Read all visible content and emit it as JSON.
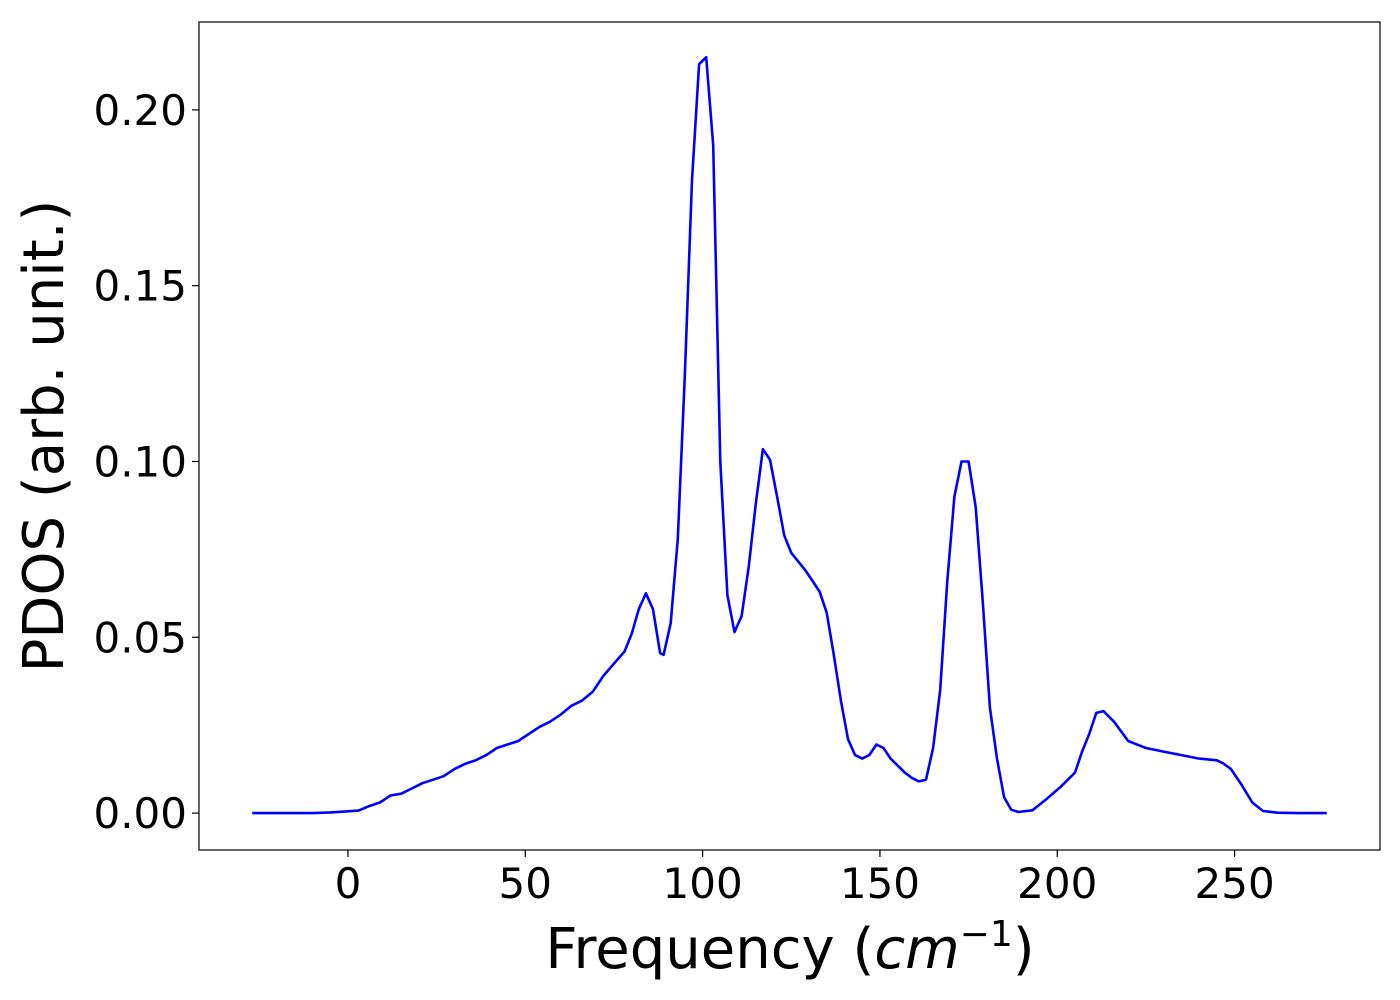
{
  "chart_data": {
    "type": "line",
    "title": "",
    "xlabel": "Frequency (cm⁻¹)",
    "xlabel_text": "Frequency (",
    "xlabel_unit": "cm",
    "xlabel_exp": "−1",
    "xlabel_close": ")",
    "ylabel": "PDOS (arb. unit.)",
    "xlim": [
      -42,
      291
    ],
    "ylim": [
      -0.0105,
      0.225
    ],
    "x_ticks": [
      0,
      50,
      100,
      150,
      200,
      250
    ],
    "x_tick_labels": [
      "0",
      "50",
      "100",
      "150",
      "200",
      "250"
    ],
    "y_ticks": [
      0.0,
      0.05,
      0.1,
      0.15,
      0.2
    ],
    "y_tick_labels": [
      "0.00",
      "0.05",
      "0.10",
      "0.15",
      "0.20"
    ],
    "grid": false,
    "legend": "none",
    "series": [
      {
        "color": "#0000ff",
        "x": [
          -27,
          -10,
          -5,
          0,
          3,
          6,
          9,
          12,
          15,
          18,
          21,
          24,
          27,
          30,
          33,
          36,
          39,
          42,
          45,
          48,
          51,
          54,
          57,
          60,
          63,
          66,
          69,
          72,
          75,
          78,
          80,
          82,
          84,
          86,
          88,
          89,
          91,
          93,
          95,
          97,
          99,
          101,
          103,
          105,
          107,
          109,
          111,
          113,
          115,
          117,
          119,
          121,
          123,
          125,
          127,
          129,
          131,
          133,
          135,
          137,
          139,
          141,
          143,
          145,
          147,
          149,
          151,
          153,
          155,
          157,
          159,
          161,
          163,
          165,
          167,
          169,
          171,
          173,
          175,
          177,
          179,
          181,
          183,
          185,
          187,
          189,
          193,
          197,
          201,
          205,
          207,
          209,
          211,
          213,
          216,
          220,
          225,
          230,
          235,
          240,
          245,
          247,
          249,
          252,
          255,
          258,
          262,
          268,
          276
        ],
        "y": [
          0.0,
          0.0,
          0.0002,
          0.0005,
          0.0007,
          0.002,
          0.003,
          0.005,
          0.0055,
          0.007,
          0.0085,
          0.0095,
          0.0105,
          0.0125,
          0.014,
          0.015,
          0.0165,
          0.0185,
          0.0195,
          0.0205,
          0.0225,
          0.0245,
          0.026,
          0.028,
          0.0305,
          0.032,
          0.0345,
          0.039,
          0.0425,
          0.046,
          0.051,
          0.058,
          0.0625,
          0.058,
          0.0455,
          0.045,
          0.054,
          0.078,
          0.125,
          0.18,
          0.213,
          0.215,
          0.19,
          0.1,
          0.062,
          0.0515,
          0.056,
          0.07,
          0.088,
          0.1035,
          0.1005,
          0.09,
          0.079,
          0.074,
          0.0715,
          0.069,
          0.066,
          0.063,
          0.057,
          0.045,
          0.032,
          0.021,
          0.0165,
          0.0155,
          0.0165,
          0.0195,
          0.0185,
          0.0155,
          0.0135,
          0.0115,
          0.01,
          0.009,
          0.0095,
          0.0185,
          0.035,
          0.066,
          0.09,
          0.1,
          0.1,
          0.087,
          0.06,
          0.03,
          0.0155,
          0.0045,
          0.001,
          0.0003,
          0.0008,
          0.004,
          0.0075,
          0.0115,
          0.0175,
          0.0225,
          0.0285,
          0.029,
          0.026,
          0.0205,
          0.0185,
          0.0175,
          0.0165,
          0.0155,
          0.015,
          0.014,
          0.0125,
          0.008,
          0.003,
          0.0006,
          0.0001,
          0.0,
          0.0
        ]
      }
    ]
  }
}
